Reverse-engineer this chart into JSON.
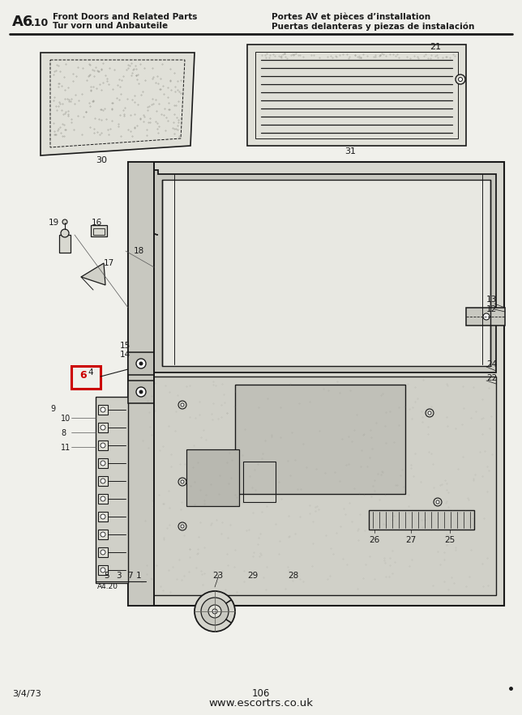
{
  "title_left_line1": "Front Doors and Related Parts",
  "title_left_line2": "Tur vorn und Anbauteile",
  "title_right_line1": "Portes AV et pièces d’installation",
  "title_right_line2": "Puertas delanteras y piezas de instalación",
  "page_code": "A6.10",
  "page_number": "106",
  "date": "3/4/73",
  "website": "www.escortrs.co.uk",
  "bg_color": "#f0f0eb",
  "line_color": "#1a1a1a",
  "highlight_box_color": "#cc0000",
  "fig_width": 6.44,
  "fig_height": 8.83,
  "dpi": 100
}
